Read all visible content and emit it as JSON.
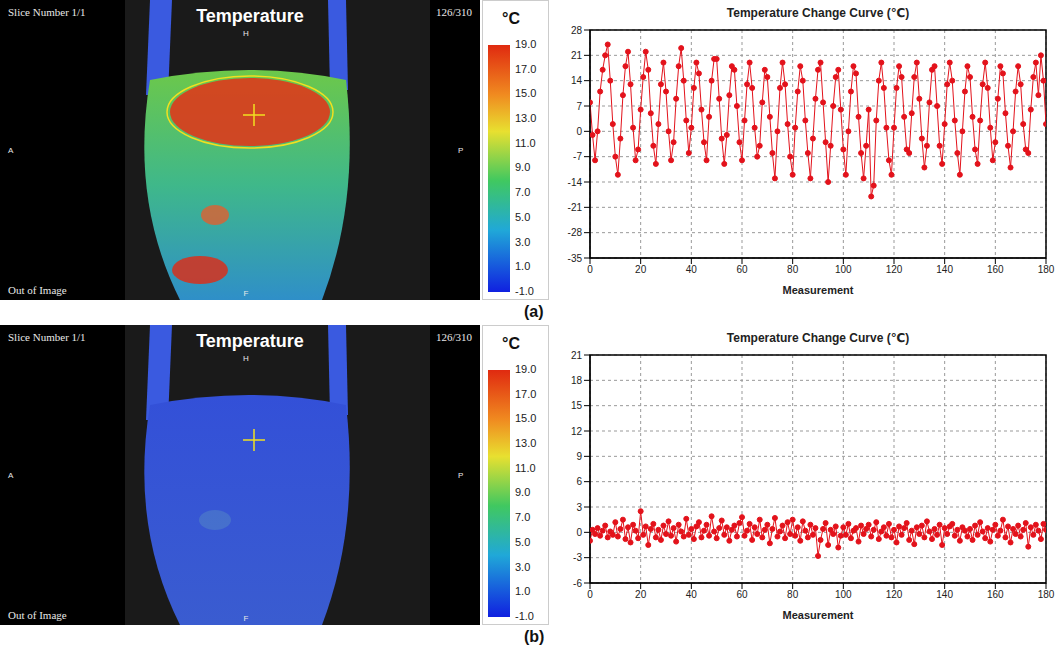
{
  "chart_data": [
    {
      "type": "line",
      "title": "Temperature Change Curve (℃)",
      "xlabel": "Measurement",
      "grid": true,
      "xlim": [
        0,
        180
      ],
      "xticks": [
        0,
        20,
        40,
        60,
        80,
        100,
        120,
        140,
        160,
        180
      ],
      "ylim": [
        -35,
        28
      ],
      "yticks": [
        -35,
        -28,
        -21,
        -14,
        -7,
        0,
        7,
        14,
        21,
        28
      ],
      "color": "#e3121b",
      "marker": "circle",
      "x": [
        0,
        1,
        2,
        3,
        4,
        5,
        6,
        7,
        8,
        9,
        10,
        11,
        12,
        13,
        14,
        15,
        16,
        17,
        18,
        19,
        20,
        21,
        22,
        23,
        24,
        25,
        26,
        27,
        28,
        29,
        30,
        31,
        32,
        33,
        34,
        35,
        36,
        37,
        38,
        39,
        40,
        41,
        42,
        43,
        44,
        45,
        46,
        47,
        48,
        49,
        50,
        51,
        52,
        53,
        54,
        55,
        56,
        57,
        58,
        59,
        60,
        61,
        62,
        63,
        64,
        65,
        66,
        67,
        68,
        69,
        70,
        71,
        72,
        73,
        74,
        75,
        76,
        77,
        78,
        79,
        80,
        81,
        82,
        83,
        84,
        85,
        86,
        87,
        88,
        89,
        90,
        91,
        92,
        93,
        94,
        95,
        96,
        97,
        98,
        99,
        100,
        101,
        102,
        103,
        104,
        105,
        106,
        107,
        108,
        109,
        110,
        111,
        112,
        113,
        114,
        115,
        116,
        117,
        118,
        119,
        120,
        121,
        122,
        123,
        124,
        125,
        126,
        127,
        128,
        129,
        130,
        131,
        132,
        133,
        134,
        135,
        136,
        137,
        138,
        139,
        140,
        141,
        142,
        143,
        144,
        145,
        146,
        147,
        148,
        149,
        150,
        151,
        152,
        153,
        154,
        155,
        156,
        157,
        158,
        159,
        160,
        161,
        162,
        163,
        164,
        165,
        166,
        167,
        168,
        169,
        170,
        171,
        172,
        173,
        174,
        175,
        176,
        177,
        178,
        179,
        180
      ],
      "values": [
        8,
        -1,
        -8,
        0,
        11,
        17,
        21,
        24,
        14,
        2,
        -7,
        -12,
        -2,
        10,
        18,
        22,
        13,
        1,
        -8,
        -5,
        6,
        15,
        22,
        17,
        5,
        -4,
        -9,
        2,
        13,
        19,
        11,
        0,
        -8,
        -3,
        9,
        18,
        23,
        14,
        3,
        -6,
        1,
        12,
        19,
        16,
        6,
        -3,
        -8,
        4,
        14,
        20,
        20,
        9,
        -2,
        -9,
        -1,
        10,
        18,
        17,
        7,
        -3,
        -8,
        3,
        13,
        19,
        12,
        1,
        -7,
        -4,
        8,
        17,
        15,
        4,
        -6,
        -13,
        0,
        12,
        19,
        13,
        2,
        -7,
        -12,
        1,
        11,
        18,
        14,
        3,
        -6,
        -13,
        -2,
        9,
        17,
        19,
        8,
        -3,
        -14,
        -4,
        7,
        15,
        17,
        6,
        -5,
        -12,
        0,
        11,
        18,
        16,
        4,
        -6,
        -13,
        -4,
        6,
        -18,
        -15,
        3,
        14,
        19,
        12,
        1,
        -8,
        -12,
        1,
        12,
        18,
        15,
        4,
        -5,
        -6,
        5,
        15,
        19,
        9,
        -2,
        -10,
        -4,
        8,
        17,
        18,
        7,
        -4,
        -9,
        2,
        13,
        19,
        14,
        3,
        -6,
        -12,
        0,
        11,
        18,
        15,
        4,
        -5,
        -9,
        3,
        13,
        19,
        12,
        1,
        -8,
        -3,
        9,
        18,
        16,
        5,
        -4,
        -10,
        0,
        11,
        18,
        13,
        2,
        -5,
        -6,
        6,
        15,
        19,
        10,
        21,
        14,
        2
      ]
    },
    {
      "type": "line",
      "title": "Temperature Change Curve (℃)",
      "xlabel": "Measurement",
      "grid": true,
      "xlim": [
        0,
        180
      ],
      "xticks": [
        0,
        20,
        40,
        60,
        80,
        100,
        120,
        140,
        160,
        180
      ],
      "ylim": [
        -6,
        21
      ],
      "yticks": [
        -6,
        -3,
        0,
        3,
        6,
        9,
        12,
        15,
        18,
        21
      ],
      "color": "#e3121b",
      "marker": "circle",
      "x": [
        0,
        1,
        2,
        3,
        4,
        5,
        6,
        7,
        8,
        9,
        10,
        11,
        12,
        13,
        14,
        15,
        16,
        17,
        18,
        19,
        20,
        21,
        22,
        23,
        24,
        25,
        26,
        27,
        28,
        29,
        30,
        31,
        32,
        33,
        34,
        35,
        36,
        37,
        38,
        39,
        40,
        41,
        42,
        43,
        44,
        45,
        46,
        47,
        48,
        49,
        50,
        51,
        52,
        53,
        54,
        55,
        56,
        57,
        58,
        59,
        60,
        61,
        62,
        63,
        64,
        65,
        66,
        67,
        68,
        69,
        70,
        71,
        72,
        73,
        74,
        75,
        76,
        77,
        78,
        79,
        80,
        81,
        82,
        83,
        84,
        85,
        86,
        87,
        88,
        89,
        90,
        91,
        92,
        93,
        94,
        95,
        96,
        97,
        98,
        99,
        100,
        101,
        102,
        103,
        104,
        105,
        106,
        107,
        108,
        109,
        110,
        111,
        112,
        113,
        114,
        115,
        116,
        117,
        118,
        119,
        120,
        121,
        122,
        123,
        124,
        125,
        126,
        127,
        128,
        129,
        130,
        131,
        132,
        133,
        134,
        135,
        136,
        137,
        138,
        139,
        140,
        141,
        142,
        143,
        144,
        145,
        146,
        147,
        148,
        149,
        150,
        151,
        152,
        153,
        154,
        155,
        156,
        157,
        158,
        159,
        160,
        161,
        162,
        163,
        164,
        165,
        166,
        167,
        168,
        169,
        170,
        171,
        172,
        173,
        174,
        175,
        176,
        177,
        178,
        179,
        180
      ],
      "values": [
        -1.0,
        0.3,
        -0.2,
        0.5,
        -0.4,
        0.2,
        0.8,
        -0.6,
        0.1,
        -0.3,
        1.2,
        -0.5,
        0.4,
        1.5,
        -0.8,
        0.6,
        -1.2,
        0.9,
        0.2,
        -0.7,
        2.5,
        -0.3,
        0.7,
        -1.5,
        0.4,
        1.0,
        -0.6,
        0.3,
        -0.9,
        0.8,
        -0.2,
        1.3,
        -0.4,
        0.5,
        -1.1,
        0.9,
        0.1,
        -0.5,
        1.6,
        -0.3,
        0.4,
        -0.8,
        0.7,
        1.2,
        -0.6,
        0.2,
        0.9,
        -0.4,
        1.9,
        0.1,
        -0.7,
        0.5,
        1.4,
        -0.3,
        0.6,
        -1.0,
        0.3,
        0.8,
        -0.5,
        1.1,
        1.8,
        -0.4,
        0.2,
        1.0,
        -0.9,
        0.6,
        -0.2,
        1.5,
        -0.6,
        0.3,
        0.9,
        -1.3,
        0.4,
        1.7,
        -0.5,
        0.1,
        0.8,
        -0.7,
        1.2,
        -0.2,
        1.5,
        -0.4,
        0.6,
        -1.0,
        1.3,
        0.2,
        -0.6,
        0.9,
        -0.3,
        0.5,
        -2.8,
        -0.9,
        0.4,
        1.1,
        -1.5,
        0.3,
        -0.2,
        0.7,
        -1.8,
        -0.4,
        0.6,
        -0.3,
        1.0,
        -0.7,
        0.2,
        0.5,
        -1.1,
        0.8,
        -0.2,
        0.4,
        0.9,
        -0.5,
        0.3,
        1.2,
        -0.8,
        0.1,
        0.6,
        -0.4,
        1.0,
        -0.6,
        0.3,
        -1.2,
        0.7,
        -0.3,
        0.5,
        1.1,
        -0.9,
        0.2,
        -1.4,
        0.6,
        -0.2,
        0.8,
        -0.6,
        1.3,
        0.1,
        -0.8,
        0.4,
        -0.3,
        0.9,
        -1.5,
        0.5,
        -0.2,
        0.7,
        1.0,
        -0.4,
        0.3,
        -1.0,
        0.6,
        0.2,
        -0.5,
        0.4,
        -0.9,
        0.8,
        -0.3,
        1.2,
        0.1,
        -0.7,
        0.5,
        -1.1,
        0.3,
        0.9,
        -0.4,
        0.2,
        1.5,
        -0.6,
        0.7,
        -1.2,
        0.4,
        -0.2,
        0.8,
        -0.5,
        0.3,
        1.1,
        -1.7,
        0.6,
        -0.3,
        0.9,
        0.2,
        -0.8,
        1.0,
        0.3
      ]
    }
  ],
  "panels": [
    {
      "label": "(a)",
      "image": {
        "slice": "Slice Number 1/1",
        "title": "Temperature",
        "frame": "126/310",
        "top": "H",
        "bottom": "F",
        "left": "A",
        "right": "P",
        "note": "Out of Image"
      },
      "colorbar": {
        "unit": "°C",
        "range": [
          -1,
          19
        ],
        "ticks": [
          {
            "value": 19,
            "label": "19.0"
          },
          {
            "value": 17,
            "label": "17.0"
          },
          {
            "value": 15,
            "label": "15.0"
          },
          {
            "value": 13,
            "label": "13.0"
          },
          {
            "value": 11,
            "label": "11.0"
          },
          {
            "value": 9,
            "label": "9.0"
          },
          {
            "value": 7,
            "label": "7.0"
          },
          {
            "value": 5,
            "label": "5.0"
          },
          {
            "value": 3,
            "label": "3.0"
          },
          {
            "value": 1,
            "label": "1.0"
          },
          {
            "value": -1,
            "label": "-1.0"
          }
        ]
      }
    },
    {
      "label": "(b)",
      "image": {
        "slice": "Slice Number 1/1",
        "title": "Temperature",
        "frame": "126/310",
        "top": "H",
        "bottom": "F",
        "left": "A",
        "right": "P",
        "note": "Out of Image"
      },
      "colorbar": {
        "unit": "°C",
        "range": [
          -1,
          19
        ],
        "ticks": [
          {
            "value": 19,
            "label": "19.0"
          },
          {
            "value": 17,
            "label": "17.0"
          },
          {
            "value": 15,
            "label": "15.0"
          },
          {
            "value": 13,
            "label": "13.0"
          },
          {
            "value": 11,
            "label": "11.0"
          },
          {
            "value": 9,
            "label": "9.0"
          },
          {
            "value": 7,
            "label": "7.0"
          },
          {
            "value": 5,
            "label": "5.0"
          },
          {
            "value": 3,
            "label": "3.0"
          },
          {
            "value": 1,
            "label": "1.0"
          },
          {
            "value": -1,
            "label": "-1.0"
          }
        ]
      }
    }
  ]
}
